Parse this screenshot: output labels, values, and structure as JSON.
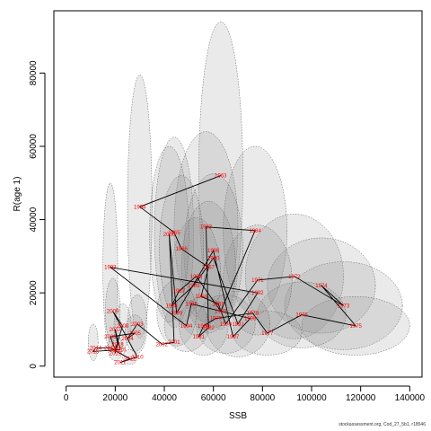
{
  "chart_data": {
    "type": "scatter",
    "xlabel": "SSB",
    "ylabel": "R(age 1)",
    "xlim": [
      -5000,
      145000
    ],
    "ylim": [
      -3000,
      97000
    ],
    "xticks": [
      0,
      20000,
      40000,
      60000,
      80000,
      100000,
      120000,
      140000
    ],
    "yticks": [
      0,
      20000,
      40000,
      60000,
      80000
    ],
    "grid": false,
    "legend": "none",
    "colors": {
      "line": "#000000",
      "label": "#ff0000",
      "ellipse_fill": "#888888",
      "ellipse_stroke": "#555555"
    },
    "points": [
      {
        "year": "1963",
        "ssb": 63000,
        "r": 52000
      },
      {
        "year": "1964",
        "ssb": 30000,
        "r": 43500
      },
      {
        "year": "1965",
        "ssb": 44000,
        "r": 36500
      },
      {
        "year": "1966",
        "ssb": 47000,
        "r": 32000
      },
      {
        "year": "1967",
        "ssb": 58000,
        "r": 27000
      },
      {
        "year": "1968",
        "ssb": 55000,
        "r": 19000
      },
      {
        "year": "1969",
        "ssb": 62000,
        "r": 17000
      },
      {
        "year": "1970",
        "ssb": 65000,
        "r": 11500
      },
      {
        "year": "1971",
        "ssb": 78000,
        "r": 23500
      },
      {
        "year": "1972",
        "ssb": 93000,
        "r": 24500
      },
      {
        "year": "1973",
        "ssb": 113000,
        "r": 16500
      },
      {
        "year": "1974",
        "ssb": 104000,
        "r": 22000
      },
      {
        "year": "1975",
        "ssb": 118000,
        "r": 11000
      },
      {
        "year": "1976",
        "ssb": 96000,
        "r": 14000
      },
      {
        "year": "1977",
        "ssb": 82000,
        "r": 9000
      },
      {
        "year": "1978",
        "ssb": 76000,
        "r": 14500
      },
      {
        "year": "1979",
        "ssb": 61000,
        "r": 13000
      },
      {
        "year": "1980",
        "ssb": 56000,
        "r": 11000
      },
      {
        "year": "1981",
        "ssb": 54000,
        "r": 8000
      },
      {
        "year": "1982",
        "ssb": 58000,
        "r": 10500
      },
      {
        "year": "1983",
        "ssb": 57000,
        "r": 38000
      },
      {
        "year": "1984",
        "ssb": 77000,
        "r": 37000
      },
      {
        "year": "1985",
        "ssb": 63000,
        "r": 15000
      },
      {
        "year": "1986",
        "ssb": 53000,
        "r": 24500
      },
      {
        "year": "1987",
        "ssb": 46000,
        "r": 20500
      },
      {
        "year": "1988",
        "ssb": 43000,
        "r": 16500
      },
      {
        "year": "1989",
        "ssb": 52000,
        "r": 22000
      },
      {
        "year": "1990",
        "ssb": 60000,
        "r": 29500
      },
      {
        "year": "1991",
        "ssb": 70000,
        "r": 11500
      },
      {
        "year": "1992",
        "ssb": 78000,
        "r": 20000
      },
      {
        "year": "1993",
        "ssb": 18000,
        "r": 27000
      },
      {
        "year": "1994",
        "ssb": 49000,
        "r": 11000
      },
      {
        "year": "1995",
        "ssb": 51000,
        "r": 17000
      },
      {
        "year": "1996",
        "ssb": 75000,
        "r": 13000
      },
      {
        "year": "1997",
        "ssb": 68000,
        "r": 8000
      },
      {
        "year": "1998",
        "ssb": 60000,
        "r": 31500
      },
      {
        "year": "1999",
        "ssb": 45000,
        "r": 14500
      },
      {
        "year": "2000",
        "ssb": 42000,
        "r": 36000
      },
      {
        "year": "2001",
        "ssb": 44000,
        "r": 6500
      },
      {
        "year": "2002",
        "ssb": 39000,
        "r": 6000
      },
      {
        "year": "2003",
        "ssb": 29000,
        "r": 11500
      },
      {
        "year": "2004",
        "ssb": 25000,
        "r": 7500
      },
      {
        "year": "2005",
        "ssb": 28000,
        "r": 9000
      },
      {
        "year": "2006",
        "ssb": 18000,
        "r": 8000
      },
      {
        "year": "2007",
        "ssb": 20000,
        "r": 4500
      },
      {
        "year": "2008",
        "ssb": 23000,
        "r": 11000
      },
      {
        "year": "2009",
        "ssb": 19000,
        "r": 15000
      },
      {
        "year": "2010",
        "ssb": 29000,
        "r": 2500
      },
      {
        "year": "2011",
        "ssb": 22000,
        "r": 1000
      },
      {
        "year": "2012",
        "ssb": 26000,
        "r": 2000
      },
      {
        "year": "2013",
        "ssb": 18000,
        "r": 5000
      },
      {
        "year": "2014",
        "ssb": 12000,
        "r": 5000
      },
      {
        "year": "2015",
        "ssb": 11000,
        "r": 4000
      },
      {
        "year": "2016",
        "ssb": 22000,
        "r": 4500
      },
      {
        "year": "2017",
        "ssb": 20000,
        "r": 10000
      },
      {
        "year": "2018",
        "ssb": 21000,
        "r": 6000
      },
      {
        "year": "2019",
        "ssb": 20000,
        "r": 3500
      }
    ],
    "ellipses": [
      {
        "ssb": 63000,
        "r": 52000,
        "ssb_sd": 9000,
        "r_sd": 42000
      },
      {
        "ssb": 30000,
        "r": 43500,
        "ssb_sd": 5000,
        "r_sd": 36000
      },
      {
        "ssb": 44000,
        "r": 36500,
        "ssb_sd": 8000,
        "r_sd": 26000
      },
      {
        "ssb": 57000,
        "r": 38000,
        "ssb_sd": 13000,
        "r_sd": 26000
      },
      {
        "ssb": 77000,
        "r": 37000,
        "ssb_sd": 13000,
        "r_sd": 23000
      },
      {
        "ssb": 93000,
        "r": 24500,
        "ssb_sd": 20000,
        "r_sd": 17000
      },
      {
        "ssb": 113000,
        "r": 16500,
        "ssb_sd": 24000,
        "r_sd": 12000
      },
      {
        "ssb": 104000,
        "r": 22000,
        "ssb_sd": 22000,
        "r_sd": 13000
      },
      {
        "ssb": 118000,
        "r": 11000,
        "ssb_sd": 22000,
        "r_sd": 8000
      },
      {
        "ssb": 96000,
        "r": 14000,
        "ssb_sd": 18000,
        "r_sd": 9000
      },
      {
        "ssb": 82000,
        "r": 9000,
        "ssb_sd": 14000,
        "r_sd": 6000
      },
      {
        "ssb": 78000,
        "r": 23500,
        "ssb_sd": 14000,
        "r_sd": 15000
      },
      {
        "ssb": 60000,
        "r": 31500,
        "ssb_sd": 12000,
        "r_sd": 21000
      },
      {
        "ssb": 58000,
        "r": 27000,
        "ssb_sd": 11000,
        "r_sd": 18000
      },
      {
        "ssb": 53000,
        "r": 24500,
        "ssb_sd": 10000,
        "r_sd": 16000
      },
      {
        "ssb": 42000,
        "r": 36000,
        "ssb_sd": 8000,
        "r_sd": 24000
      },
      {
        "ssb": 47000,
        "r": 32000,
        "ssb_sd": 9000,
        "r_sd": 20000
      },
      {
        "ssb": 65000,
        "r": 11500,
        "ssb_sd": 12000,
        "r_sd": 8000
      },
      {
        "ssb": 70000,
        "r": 11500,
        "ssb_sd": 13000,
        "r_sd": 9000
      },
      {
        "ssb": 56000,
        "r": 11000,
        "ssb_sd": 10000,
        "r_sd": 8000
      },
      {
        "ssb": 49000,
        "r": 11000,
        "ssb_sd": 9000,
        "r_sd": 7000
      },
      {
        "ssb": 45000,
        "r": 14500,
        "ssb_sd": 8000,
        "r_sd": 9000
      },
      {
        "ssb": 18000,
        "r": 27000,
        "ssb_sd": 3000,
        "r_sd": 23000
      },
      {
        "ssb": 29000,
        "r": 11500,
        "ssb_sd": 4000,
        "r_sd": 8000
      },
      {
        "ssb": 23000,
        "r": 11000,
        "ssb_sd": 3500,
        "r_sd": 6000
      },
      {
        "ssb": 19000,
        "r": 15000,
        "ssb_sd": 3000,
        "r_sd": 9000
      },
      {
        "ssb": 28000,
        "r": 9000,
        "ssb_sd": 4000,
        "r_sd": 5000
      },
      {
        "ssb": 11000,
        "r": 6500,
        "ssb_sd": 2000,
        "r_sd": 5000
      },
      {
        "ssb": 20000,
        "r": 5000,
        "ssb_sd": 3000,
        "r_sd": 3500
      },
      {
        "ssb": 26000,
        "r": 2500,
        "ssb_sd": 3000,
        "r_sd": 2000
      }
    ],
    "path_order": [
      "1963",
      "1964",
      "1965",
      "1966",
      "1967",
      "1968",
      "1969",
      "1970",
      "1971",
      "1972",
      "1973",
      "1974",
      "1975",
      "1976",
      "1977",
      "1978",
      "1979",
      "1980",
      "1981",
      "1982",
      "1983",
      "1984",
      "1985",
      "1986",
      "1987",
      "1988",
      "1989",
      "1990",
      "1991",
      "1992",
      "1993",
      "1994",
      "1995",
      "1996",
      "1997",
      "1998",
      "1999",
      "2000",
      "2001",
      "2002",
      "2003",
      "2004",
      "2005",
      "2006",
      "2007",
      "2008",
      "2009",
      "2010",
      "2011",
      "2012",
      "2013",
      "2014",
      "2015",
      "2016",
      "2017",
      "2018",
      "2019"
    ]
  },
  "caption": "stockassessment.org, Cod_27_5b1, r18546"
}
